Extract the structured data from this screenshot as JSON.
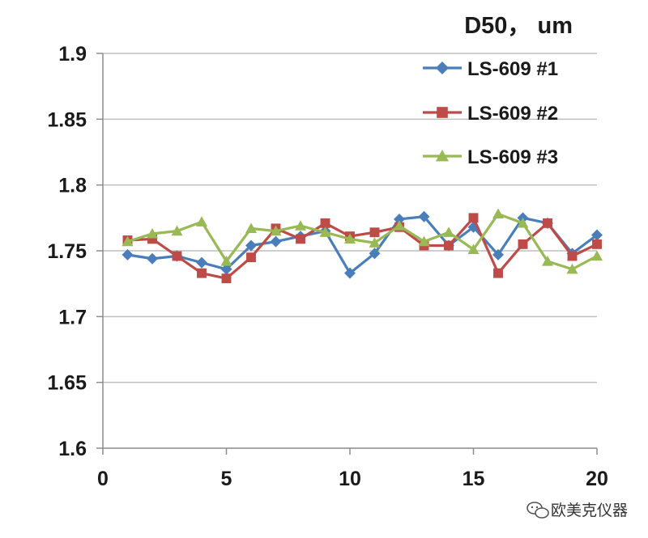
{
  "chart_data": {
    "type": "line",
    "title": "D50， um",
    "xlabel": "",
    "ylabel": "",
    "xlim": [
      0,
      20
    ],
    "ylim": [
      1.6,
      1.9
    ],
    "xticks": [
      0,
      5,
      10,
      15,
      20
    ],
    "yticks": [
      1.6,
      1.65,
      1.7,
      1.75,
      1.8,
      1.85,
      1.9
    ],
    "ytick_labels": [
      "1.6",
      "1.65",
      "1.7",
      "1.75",
      "1.8",
      "1.85",
      "1.9"
    ],
    "grid": true,
    "legend_position": "top-right",
    "x": [
      1,
      2,
      3,
      4,
      5,
      6,
      7,
      8,
      9,
      10,
      11,
      12,
      13,
      14,
      15,
      16,
      17,
      18,
      19,
      20
    ],
    "series": [
      {
        "name": "LS-609 #1",
        "color": "#4a7ebb",
        "marker": "diamond",
        "values": [
          1.747,
          1.744,
          1.746,
          1.741,
          1.736,
          1.754,
          1.757,
          1.761,
          1.765,
          1.733,
          1.748,
          1.774,
          1.776,
          1.754,
          1.768,
          1.747,
          1.775,
          1.771,
          1.748,
          1.762
        ]
      },
      {
        "name": "LS-609 #2",
        "color": "#be4b48",
        "marker": "square",
        "values": [
          1.758,
          1.759,
          1.746,
          1.733,
          1.729,
          1.745,
          1.767,
          1.759,
          1.771,
          1.761,
          1.764,
          1.768,
          1.754,
          1.754,
          1.775,
          1.733,
          1.755,
          1.771,
          1.746,
          1.755
        ]
      },
      {
        "name": "LS-609 #3",
        "color": "#98b954",
        "marker": "triangle",
        "values": [
          1.757,
          1.763,
          1.765,
          1.772,
          1.742,
          1.767,
          1.765,
          1.769,
          1.764,
          1.759,
          1.756,
          1.769,
          1.757,
          1.764,
          1.751,
          1.778,
          1.771,
          1.742,
          1.736,
          1.746
        ]
      }
    ]
  },
  "watermark": {
    "text": "欧美克仪器",
    "icon": "wechat-icon"
  }
}
